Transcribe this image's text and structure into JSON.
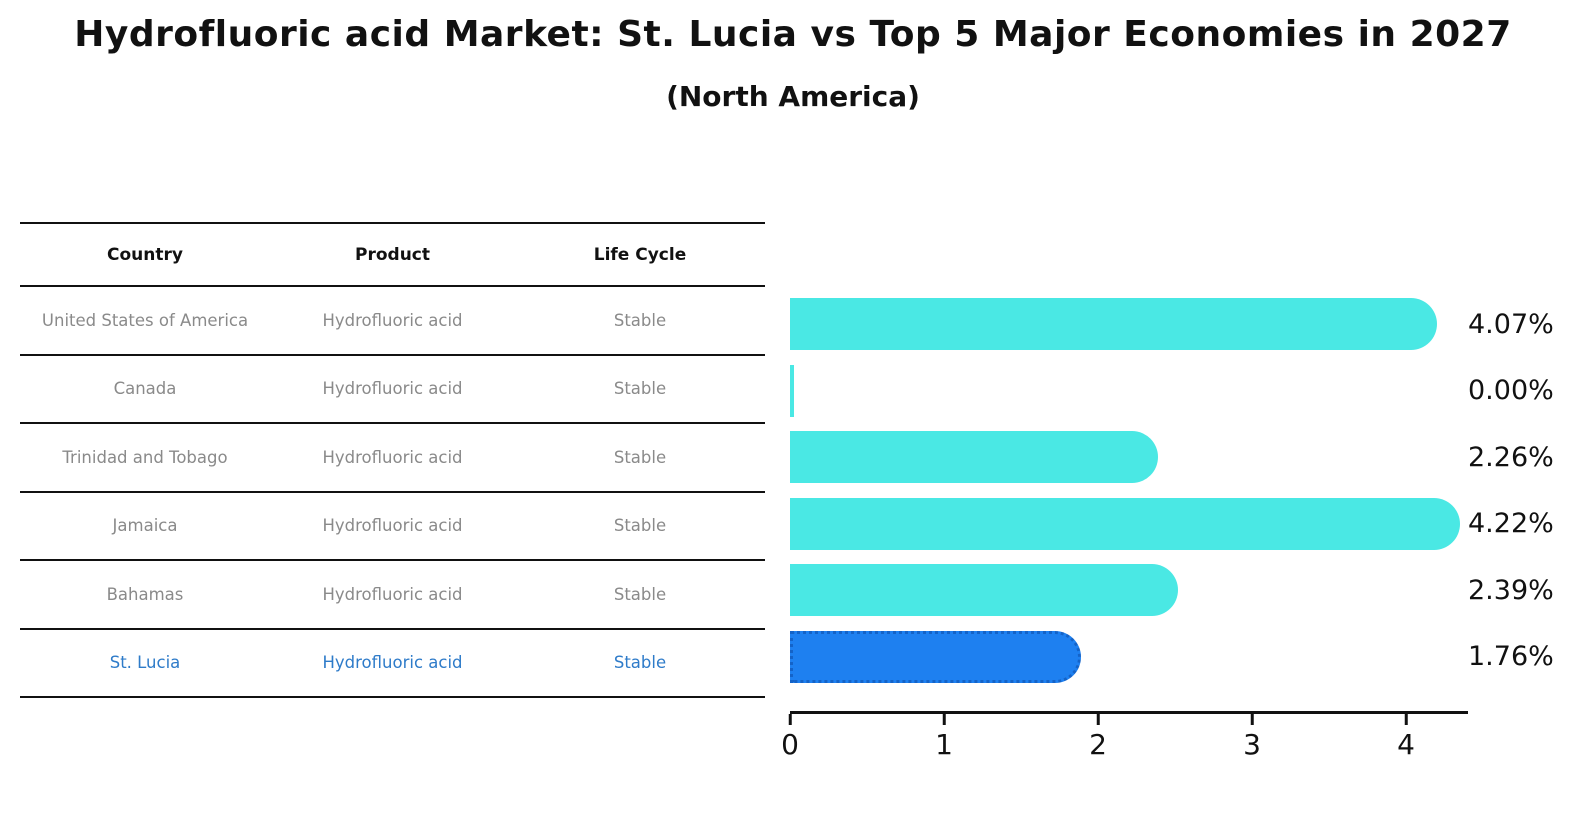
{
  "title": "Hydrofluoric acid Market: St. Lucia vs Top 5 Major Economies in 2027",
  "subtitle": "(North America)",
  "table": {
    "headers": [
      "Country",
      "Product",
      "Life Cycle"
    ],
    "rows": [
      {
        "country": "United States of America",
        "product": "Hydrofluoric acid",
        "life_cycle": "Stable",
        "highlight": false
      },
      {
        "country": "Canada",
        "product": "Hydrofluoric acid",
        "life_cycle": "Stable",
        "highlight": false
      },
      {
        "country": "Trinidad and Tobago",
        "product": "Hydrofluoric acid",
        "life_cycle": "Stable",
        "highlight": false
      },
      {
        "country": "Jamaica",
        "product": "Hydrofluoric acid",
        "life_cycle": "Stable",
        "highlight": false
      },
      {
        "country": "Bahamas",
        "product": "Hydrofluoric acid",
        "life_cycle": "Stable",
        "highlight": false
      },
      {
        "country": "St. Lucia",
        "product": "Hydrofluoric acid",
        "life_cycle": "Stable",
        "highlight": true
      }
    ]
  },
  "chart_data": {
    "type": "bar",
    "orientation": "horizontal",
    "title": "Hydrofluoric acid Market: St. Lucia vs Top 5 Major Economies in 2027",
    "subtitle": "(North America)",
    "categories": [
      "United States of America",
      "Canada",
      "Trinidad and Tobago",
      "Jamaica",
      "Bahamas",
      "St. Lucia"
    ],
    "values": [
      4.07,
      0.0,
      2.26,
      4.22,
      2.39,
      1.76
    ],
    "value_labels": [
      "4.07%",
      "0.00%",
      "2.26%",
      "4.22%",
      "2.39%",
      "1.76%"
    ],
    "xticks": [
      "0",
      "1",
      "2",
      "3",
      "4"
    ],
    "xlim": [
      0,
      4.4
    ],
    "grid": false,
    "legend": "none",
    "highlight_index": 5,
    "bar_color": "#4AE8E4",
    "highlight_bar_color": "#1E80F0",
    "highlight_border_color": "#1463C8",
    "highlight_text_color": "#2E7BC9",
    "text_color": "#111111",
    "muted_text_color": "#8A8A8A"
  }
}
